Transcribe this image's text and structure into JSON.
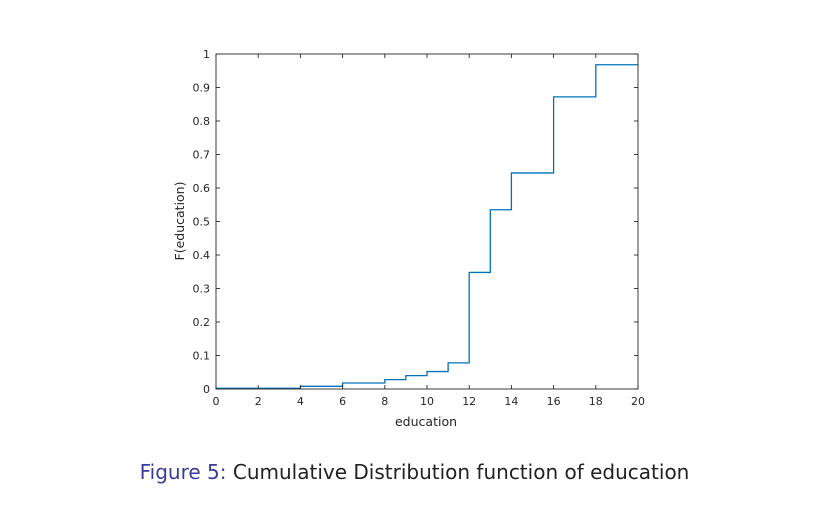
{
  "caption": {
    "label": "Figure 5:",
    "text": "Cumulative Distribution function of education"
  },
  "chart_data": {
    "type": "line",
    "step": "post",
    "xlabel": "education",
    "ylabel": "F(education)",
    "xlim": [
      0,
      20
    ],
    "ylim": [
      0,
      1
    ],
    "xticks": [
      0,
      2,
      4,
      6,
      8,
      10,
      12,
      14,
      16,
      18,
      20
    ],
    "yticks": [
      0,
      0.1,
      0.2,
      0.3,
      0.4,
      0.5,
      0.6,
      0.7,
      0.8,
      0.9,
      1
    ],
    "grid": false,
    "box": true,
    "line_color": "#0072bd",
    "series": [
      {
        "x": [
          0,
          4,
          6,
          8,
          9,
          10,
          11,
          12,
          13,
          14,
          16,
          18,
          20
        ],
        "y": [
          0.002,
          0.008,
          0.018,
          0.028,
          0.04,
          0.052,
          0.078,
          0.348,
          0.535,
          0.645,
          0.872,
          0.968,
          0.968
        ]
      }
    ]
  }
}
